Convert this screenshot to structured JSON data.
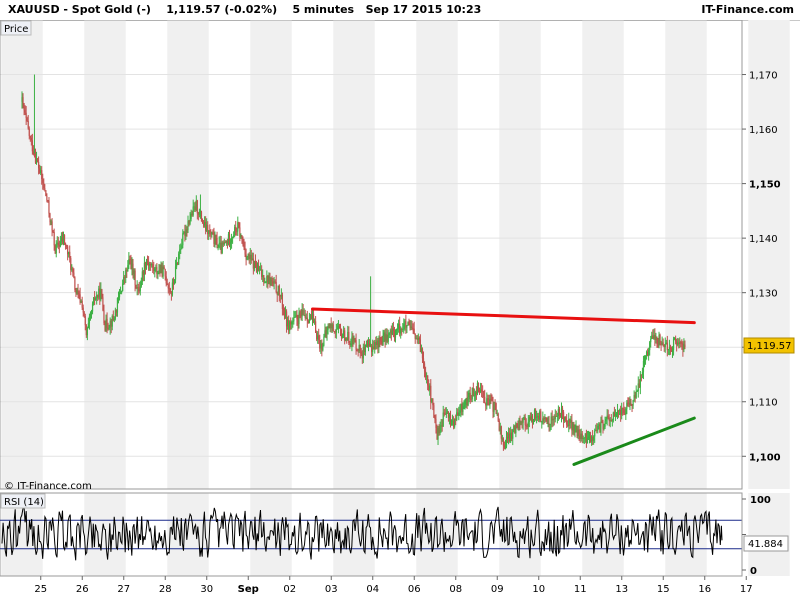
{
  "header": {
    "title": "XAUUSD - Spot Gold (-)    1,119.57 (-0.02%)    5 minutes   Sep 17 2015 10:23",
    "brand": "IT-Finance.com"
  },
  "panels": {
    "price_label": "Price",
    "rsi_label": "RSI (14)",
    "watermark": "© IT-Finance.com"
  },
  "colors": {
    "up": "#3cb043",
    "down": "#c0504d",
    "resistance": "#e81010",
    "support": "#1a8a1a",
    "price_box": "#f2c200",
    "rsi_line": "#000000",
    "rsi_levels": "#1a2a8a"
  },
  "chart_data": [
    {
      "type": "candlestick",
      "name": "price",
      "x_tick_labels": [
        "25",
        "26",
        "27",
        "28",
        "30",
        "Sep",
        "02",
        "03",
        "04",
        "06",
        "08",
        "09",
        "10",
        "11",
        "13",
        "15",
        "16",
        "17"
      ],
      "y_ticks": [
        1100,
        1110,
        1120,
        1130,
        1140,
        1150,
        1160,
        1170
      ],
      "y_tick_labels": [
        "1,100",
        "1,110",
        "",
        "1,130",
        "1,140",
        "1,150",
        "1,160",
        "1,170"
      ],
      "ylim": [
        1094,
        1180
      ],
      "last_value": 1119.57,
      "last_value_label": "1,119.57",
      "path": [
        [
          0,
          1165
        ],
        [
          0.2,
          1158
        ],
        [
          0.4,
          1153
        ],
        [
          0.6,
          1147
        ],
        [
          0.8,
          1138
        ],
        [
          1.0,
          1140
        ],
        [
          1.15,
          1136
        ],
        [
          1.3,
          1130
        ],
        [
          1.45,
          1128
        ],
        [
          1.55,
          1122
        ],
        [
          1.75,
          1129
        ],
        [
          1.9,
          1130
        ],
        [
          2.0,
          1124
        ],
        [
          2.2,
          1125
        ],
        [
          2.4,
          1131
        ],
        [
          2.6,
          1136
        ],
        [
          2.8,
          1130
        ],
        [
          2.95,
          1135
        ],
        [
          3.0,
          1136
        ],
        [
          3.2,
          1134
        ],
        [
          3.4,
          1134
        ],
        [
          3.6,
          1130
        ],
        [
          3.8,
          1138
        ],
        [
          4.0,
          1143
        ],
        [
          4.2,
          1146
        ],
        [
          4.4,
          1142
        ],
        [
          4.6,
          1140
        ],
        [
          4.8,
          1138
        ],
        [
          5.0,
          1140
        ],
        [
          5.2,
          1142
        ],
        [
          5.4,
          1137
        ],
        [
          5.6,
          1135
        ],
        [
          5.8,
          1133
        ],
        [
          6.0,
          1132
        ],
        [
          6.2,
          1130
        ],
        [
          6.4,
          1124
        ],
        [
          6.6,
          1125
        ],
        [
          6.8,
          1126
        ],
        [
          7.0,
          1125
        ],
        [
          7.2,
          1120
        ],
        [
          7.4,
          1124
        ],
        [
          7.6,
          1123
        ],
        [
          7.8,
          1122
        ],
        [
          8.0,
          1121
        ],
        [
          8.2,
          1119
        ],
        [
          8.4,
          1120
        ],
        [
          8.6,
          1121
        ],
        [
          8.8,
          1122
        ],
        [
          9.0,
          1123
        ],
        [
          9.2,
          1124
        ],
        [
          9.4,
          1123
        ],
        [
          9.6,
          1120
        ],
        [
          9.8,
          1113
        ],
        [
          10.0,
          1104
        ],
        [
          10.2,
          1108
        ],
        [
          10.4,
          1106
        ],
        [
          10.6,
          1109
        ],
        [
          10.8,
          1111
        ],
        [
          11.0,
          1113
        ],
        [
          11.2,
          1110
        ],
        [
          11.4,
          1109
        ],
        [
          11.6,
          1102
        ],
        [
          11.8,
          1104
        ],
        [
          12.0,
          1107
        ],
        [
          12.2,
          1106
        ],
        [
          12.4,
          1108
        ],
        [
          12.6,
          1106
        ],
        [
          12.8,
          1107
        ],
        [
          13.0,
          1108
        ],
        [
          13.2,
          1106
        ],
        [
          13.4,
          1104
        ],
        [
          13.6,
          1103
        ],
        [
          13.8,
          1104
        ],
        [
          14.0,
          1106
        ],
        [
          14.2,
          1107
        ],
        [
          14.4,
          1108
        ],
        [
          14.6,
          1109
        ],
        [
          14.8,
          1111
        ],
        [
          15.0,
          1118
        ],
        [
          15.2,
          1122
        ],
        [
          15.4,
          1121
        ],
        [
          15.6,
          1120
        ],
        [
          15.8,
          1121
        ],
        [
          16.0,
          1119.57
        ]
      ],
      "annotations": [
        {
          "type": "trendline",
          "name": "resistance",
          "x1": 7.0,
          "y1": 1127,
          "x2": 16.2,
          "y2": 1124.5
        },
        {
          "type": "trendline",
          "name": "support",
          "x1": 13.3,
          "y1": 1098.5,
          "x2": 16.2,
          "y2": 1107
        }
      ]
    },
    {
      "type": "line",
      "name": "RSI (14)",
      "y_ticks": [
        0,
        50,
        100
      ],
      "y_tick_labels": [
        "0",
        "",
        "100"
      ],
      "levels": [
        70,
        30
      ],
      "last_value": 41.884,
      "last_value_label": "41.884"
    }
  ]
}
